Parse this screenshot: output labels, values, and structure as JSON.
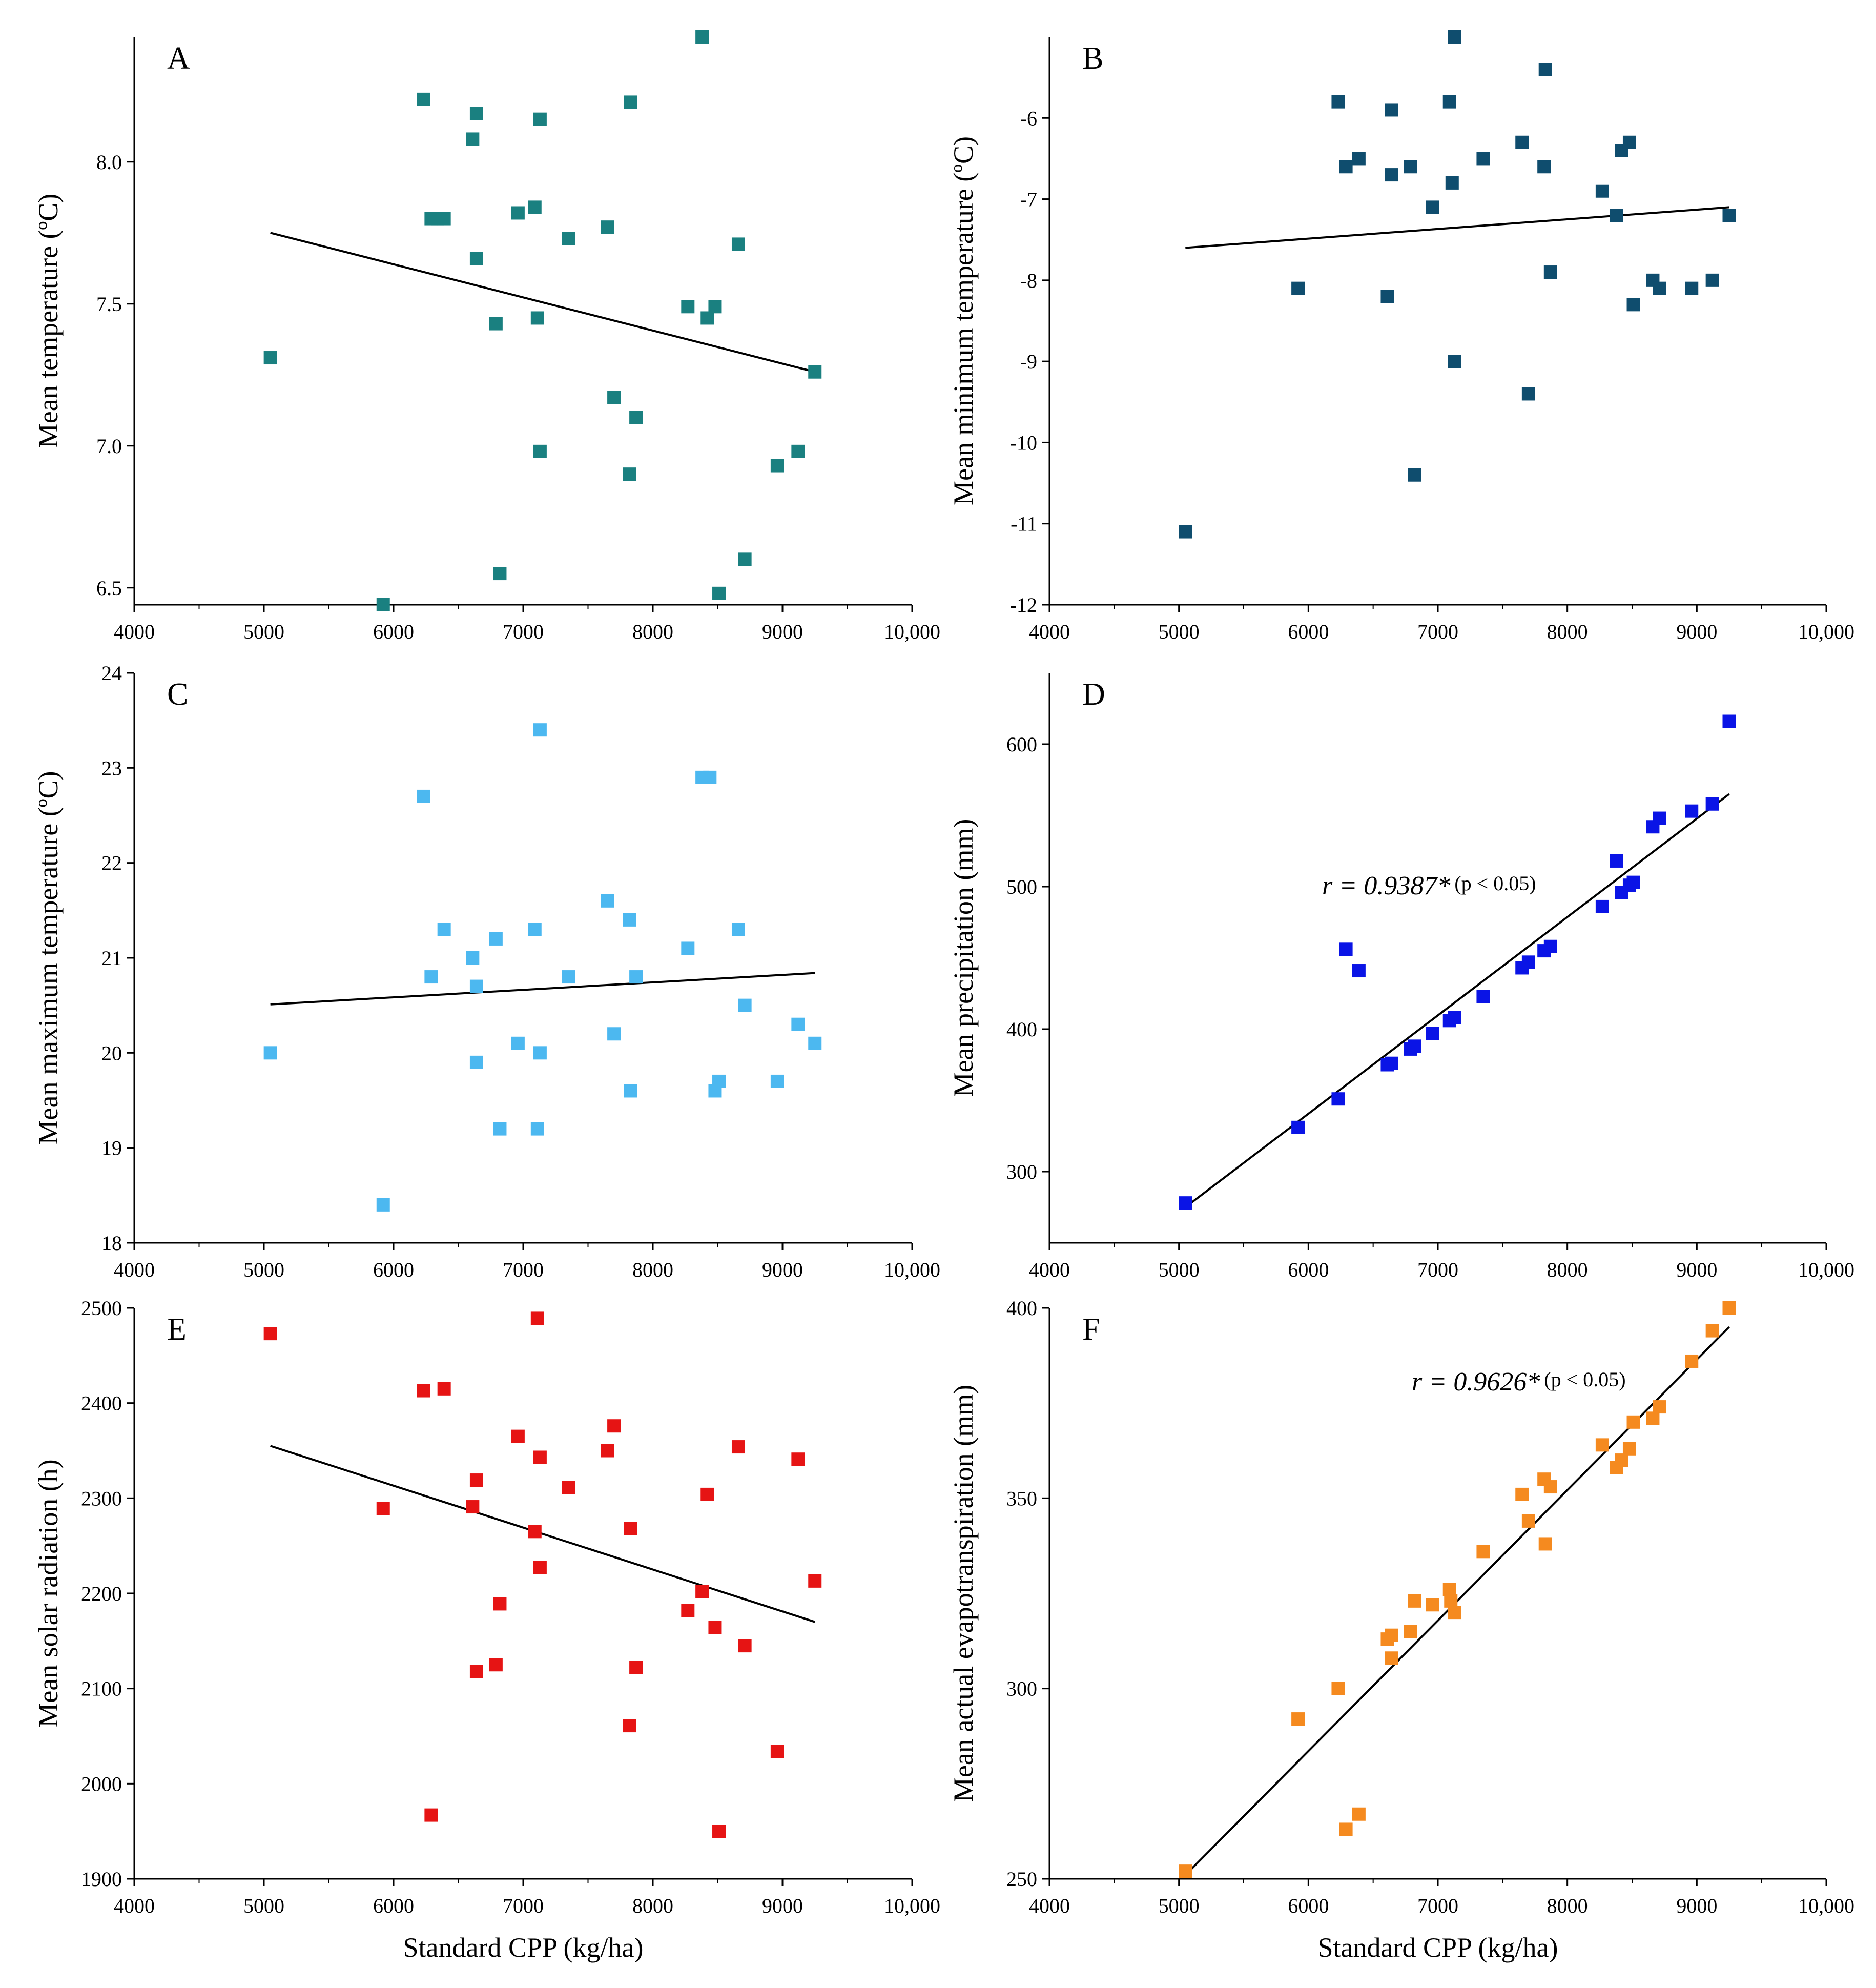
{
  "chart_data": [
    {
      "panel": "A",
      "type": "scatter",
      "xlabel": "",
      "ylabel": "Mean temperature (ºC)",
      "xlim": [
        4000,
        10000
      ],
      "ylim": [
        6.44,
        8.44
      ],
      "x_ticks": [
        4000,
        5000,
        6000,
        7000,
        8000,
        9000,
        10000
      ],
      "x_tick_labels": [
        "4000",
        "5000",
        "6000",
        "7000",
        "8000",
        "9000",
        "10,000"
      ],
      "y_ticks": [
        6.5,
        7.0,
        7.5,
        8.0
      ],
      "y_tick_labels": [
        "6.5",
        "7.0",
        "7.5",
        "8.0"
      ],
      "marker_color": "#1a8080",
      "points": [
        [
          5050,
          7.31
        ],
        [
          5920,
          6.44
        ],
        [
          6230,
          8.22
        ],
        [
          6290,
          7.8
        ],
        [
          6340,
          7.8
        ],
        [
          6390,
          7.8
        ],
        [
          6610,
          8.08
        ],
        [
          6640,
          8.17
        ],
        [
          6640,
          7.66
        ],
        [
          6790,
          7.43
        ],
        [
          6820,
          6.55
        ],
        [
          6960,
          7.82
        ],
        [
          7090,
          7.84
        ],
        [
          7110,
          7.45
        ],
        [
          7130,
          6.98
        ],
        [
          7130,
          8.15
        ],
        [
          7350,
          7.73
        ],
        [
          7650,
          7.77
        ],
        [
          7700,
          7.17
        ],
        [
          7820,
          6.9
        ],
        [
          7830,
          8.21
        ],
        [
          7870,
          7.1
        ],
        [
          8270,
          7.49
        ],
        [
          8380,
          8.44
        ],
        [
          8420,
          7.45
        ],
        [
          8480,
          7.49
        ],
        [
          8510,
          6.48
        ],
        [
          8660,
          7.71
        ],
        [
          8710,
          6.6
        ],
        [
          8960,
          6.93
        ],
        [
          9120,
          6.98
        ],
        [
          9250,
          7.26
        ]
      ],
      "fit_line": [
        [
          5050,
          7.75
        ],
        [
          9250,
          7.26
        ]
      ],
      "annotation": ""
    },
    {
      "panel": "B",
      "type": "scatter",
      "xlabel": "",
      "ylabel": "Mean minimum temperature (ºC)",
      "xlim": [
        4000,
        10000
      ],
      "ylim": [
        -12,
        -5.0
      ],
      "x_ticks": [
        4000,
        5000,
        6000,
        7000,
        8000,
        9000,
        10000
      ],
      "x_tick_labels": [
        "4000",
        "5000",
        "6000",
        "7000",
        "8000",
        "9000",
        "10,000"
      ],
      "y_ticks": [
        -12,
        -11,
        -10,
        -9,
        -8,
        -7,
        -6
      ],
      "y_tick_labels": [
        "-12",
        "-11",
        "-10",
        "-9",
        "-8",
        "-7",
        "-6"
      ],
      "marker_color": "#0f4d6e",
      "points": [
        [
          5050,
          -11.1
        ],
        [
          5920,
          -8.1
        ],
        [
          6230,
          -5.8
        ],
        [
          6290,
          -6.6
        ],
        [
          6390,
          -6.5
        ],
        [
          6610,
          -8.2
        ],
        [
          6640,
          -5.9
        ],
        [
          6640,
          -6.7
        ],
        [
          6790,
          -6.6
        ],
        [
          6820,
          -10.4
        ],
        [
          6960,
          -7.1
        ],
        [
          7090,
          -5.8
        ],
        [
          7110,
          -6.8
        ],
        [
          7130,
          -9.0
        ],
        [
          7130,
          -5.0
        ],
        [
          7350,
          -6.5
        ],
        [
          7650,
          -6.3
        ],
        [
          7700,
          -9.4
        ],
        [
          7820,
          -6.6
        ],
        [
          7830,
          -5.4
        ],
        [
          7870,
          -7.9
        ],
        [
          8270,
          -6.9
        ],
        [
          8380,
          -7.2
        ],
        [
          8420,
          -6.4
        ],
        [
          8480,
          -6.3
        ],
        [
          8510,
          -8.3
        ],
        [
          8660,
          -8.0
        ],
        [
          8710,
          -8.1
        ],
        [
          8960,
          -8.1
        ],
        [
          9120,
          -8.0
        ],
        [
          9250,
          -7.2
        ]
      ],
      "fit_line": [
        [
          5050,
          -7.6
        ],
        [
          9250,
          -7.1
        ]
      ],
      "annotation": ""
    },
    {
      "panel": "C",
      "type": "scatter",
      "xlabel": "",
      "ylabel": "Mean maximum temperature (ºC)",
      "xlim": [
        4000,
        10000
      ],
      "ylim": [
        18,
        24
      ],
      "x_ticks": [
        4000,
        5000,
        6000,
        7000,
        8000,
        9000,
        10000
      ],
      "x_tick_labels": [
        "4000",
        "5000",
        "6000",
        "7000",
        "8000",
        "9000",
        "10,000"
      ],
      "y_ticks": [
        18,
        19,
        20,
        21,
        22,
        23,
        24
      ],
      "y_tick_labels": [
        "18",
        "19",
        "20",
        "21",
        "22",
        "23",
        "24"
      ],
      "marker_color": "#4cb8f0",
      "points": [
        [
          5050,
          20.0
        ],
        [
          5920,
          18.4
        ],
        [
          6230,
          22.7
        ],
        [
          6290,
          20.8
        ],
        [
          6390,
          21.3
        ],
        [
          6610,
          21.0
        ],
        [
          6640,
          20.7
        ],
        [
          6640,
          19.9
        ],
        [
          6790,
          21.2
        ],
        [
          6820,
          19.2
        ],
        [
          6960,
          20.1
        ],
        [
          7090,
          21.3
        ],
        [
          7110,
          19.2
        ],
        [
          7130,
          20.0
        ],
        [
          7130,
          23.4
        ],
        [
          7350,
          20.8
        ],
        [
          7650,
          21.6
        ],
        [
          7700,
          20.2
        ],
        [
          7820,
          21.4
        ],
        [
          7830,
          19.6
        ],
        [
          7870,
          20.8
        ],
        [
          8270,
          21.1
        ],
        [
          8380,
          22.9
        ],
        [
          8440,
          22.9
        ],
        [
          8480,
          19.6
        ],
        [
          8510,
          19.7
        ],
        [
          8660,
          21.3
        ],
        [
          8710,
          20.5
        ],
        [
          8960,
          19.7
        ],
        [
          9120,
          20.3
        ],
        [
          9250,
          20.1
        ]
      ],
      "fit_line": [
        [
          5050,
          20.51
        ],
        [
          9250,
          20.84
        ]
      ],
      "annotation": ""
    },
    {
      "panel": "D",
      "type": "scatter",
      "xlabel": "",
      "ylabel": "Mean precipitation (mm)",
      "xlim": [
        4000,
        10000
      ],
      "ylim": [
        250,
        650
      ],
      "x_ticks": [
        4000,
        5000,
        6000,
        7000,
        8000,
        9000,
        10000
      ],
      "x_tick_labels": [
        "4000",
        "5000",
        "6000",
        "7000",
        "8000",
        "9000",
        "10,000"
      ],
      "y_ticks": [
        300,
        400,
        500,
        600
      ],
      "y_tick_labels": [
        "300",
        "400",
        "500",
        "600"
      ],
      "marker_color": "#0a14e6",
      "points": [
        [
          5050,
          278
        ],
        [
          5920,
          331
        ],
        [
          6230,
          351
        ],
        [
          6290,
          456
        ],
        [
          6390,
          441
        ],
        [
          6610,
          375
        ],
        [
          6640,
          376
        ],
        [
          6790,
          386
        ],
        [
          6820,
          388
        ],
        [
          6960,
          397
        ],
        [
          7090,
          406
        ],
        [
          7130,
          408
        ],
        [
          7350,
          423
        ],
        [
          7650,
          443
        ],
        [
          7700,
          447
        ],
        [
          7820,
          455
        ],
        [
          7870,
          458
        ],
        [
          8270,
          486
        ],
        [
          8380,
          518
        ],
        [
          8420,
          496
        ],
        [
          8480,
          501
        ],
        [
          8510,
          503
        ],
        [
          8660,
          542
        ],
        [
          8710,
          548
        ],
        [
          8960,
          553
        ],
        [
          9120,
          558
        ],
        [
          9250,
          616
        ]
      ],
      "fit_line": [
        [
          5050,
          275
        ],
        [
          9250,
          565
        ]
      ],
      "annotation": "r = 0.9387*",
      "annotation_p": "(p < 0.05)"
    },
    {
      "panel": "E",
      "type": "scatter",
      "xlabel": "Standard CPP (kg/ha)",
      "ylabel": "Mean solar radiation (h)",
      "xlim": [
        4000,
        10000
      ],
      "ylim": [
        1900,
        2500
      ],
      "x_ticks": [
        4000,
        5000,
        6000,
        7000,
        8000,
        9000,
        10000
      ],
      "x_tick_labels": [
        "4000",
        "5000",
        "6000",
        "7000",
        "8000",
        "9000",
        "10,000"
      ],
      "y_ticks": [
        1900,
        2000,
        2100,
        2200,
        2300,
        2400,
        2500
      ],
      "y_tick_labels": [
        "1900",
        "2000",
        "2100",
        "2200",
        "2300",
        "2400",
        "2500"
      ],
      "marker_color": "#e61414",
      "points": [
        [
          5050,
          2473
        ],
        [
          5920,
          2289
        ],
        [
          6230,
          2413
        ],
        [
          6290,
          1967
        ],
        [
          6390,
          2415
        ],
        [
          6610,
          2291
        ],
        [
          6640,
          2118
        ],
        [
          6640,
          2319
        ],
        [
          6790,
          2125
        ],
        [
          6820,
          2189
        ],
        [
          6960,
          2365
        ],
        [
          7090,
          2265
        ],
        [
          7110,
          2489
        ],
        [
          7130,
          2343
        ],
        [
          7130,
          2227
        ],
        [
          7350,
          2311
        ],
        [
          7650,
          2350
        ],
        [
          7700,
          2376
        ],
        [
          7820,
          2061
        ],
        [
          7830,
          2268
        ],
        [
          7870,
          2122
        ],
        [
          8270,
          2182
        ],
        [
          8380,
          2202
        ],
        [
          8420,
          2304
        ],
        [
          8480,
          2164
        ],
        [
          8510,
          1950
        ],
        [
          8660,
          2354
        ],
        [
          8710,
          2145
        ],
        [
          8960,
          2034
        ],
        [
          9120,
          2341
        ],
        [
          9250,
          2213
        ]
      ],
      "fit_line": [
        [
          5050,
          2355
        ],
        [
          9250,
          2170
        ]
      ],
      "annotation": ""
    },
    {
      "panel": "F",
      "type": "scatter",
      "xlabel": "Standard CPP (kg/ha)",
      "ylabel": "Mean actual evapotranspiration (mm)",
      "xlim": [
        4000,
        10000
      ],
      "ylim": [
        250,
        400
      ],
      "x_ticks": [
        4000,
        5000,
        6000,
        7000,
        8000,
        9000,
        10000
      ],
      "x_tick_labels": [
        "4000",
        "5000",
        "6000",
        "7000",
        "8000",
        "9000",
        "10,000"
      ],
      "y_ticks": [
        250,
        300,
        350,
        400
      ],
      "y_tick_labels": [
        "250",
        "300",
        "350",
        "400"
      ],
      "marker_color": "#f58a1f",
      "points": [
        [
          5050,
          252
        ],
        [
          5920,
          292
        ],
        [
          6230,
          300
        ],
        [
          6290,
          263
        ],
        [
          6390,
          267
        ],
        [
          6610,
          313
        ],
        [
          6640,
          314
        ],
        [
          6640,
          308
        ],
        [
          6790,
          315
        ],
        [
          6820,
          323
        ],
        [
          6960,
          322
        ],
        [
          7090,
          326
        ],
        [
          7100,
          323
        ],
        [
          7130,
          320
        ],
        [
          7350,
          336
        ],
        [
          7650,
          351
        ],
        [
          7700,
          344
        ],
        [
          7820,
          355
        ],
        [
          7830,
          338
        ],
        [
          7870,
          353
        ],
        [
          8270,
          364
        ],
        [
          8380,
          358
        ],
        [
          8420,
          360
        ],
        [
          8480,
          363
        ],
        [
          8510,
          370
        ],
        [
          8660,
          371
        ],
        [
          8710,
          374
        ],
        [
          8960,
          386
        ],
        [
          9120,
          394
        ],
        [
          9250,
          400
        ]
      ],
      "fit_line": [
        [
          5050,
          251
        ],
        [
          9250,
          395
        ]
      ],
      "annotation": "r = 0.9626*",
      "annotation_p": "(p < 0.05)"
    }
  ]
}
